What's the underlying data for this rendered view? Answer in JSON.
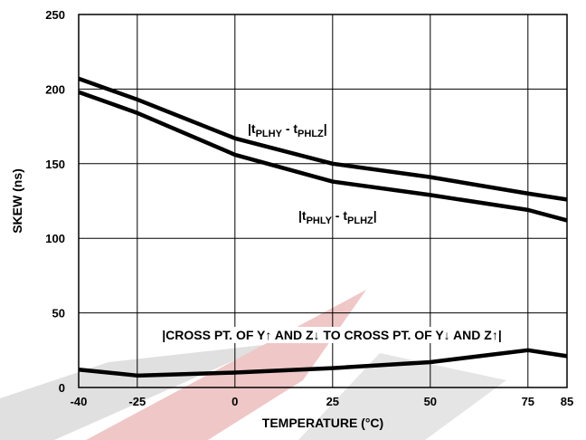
{
  "chart_data": {
    "type": "line",
    "x_label": "TEMPERATURE (°C)",
    "y_label": "SKEW (ns)",
    "x": [
      -40,
      -25,
      0,
      25,
      50,
      75,
      85
    ],
    "xlim": [
      -40,
      85
    ],
    "xticks": [
      -40,
      -25,
      0,
      25,
      50,
      75,
      85
    ],
    "ylim": [
      0,
      250
    ],
    "yticks": [
      0,
      50,
      100,
      150,
      200,
      250
    ],
    "grid": true,
    "series": [
      {
        "name": [
          "|t",
          "PLHY",
          " - t",
          "PHLZ",
          "|"
        ],
        "color": "#000000",
        "values": [
          207,
          193,
          167,
          150,
          141,
          130,
          126
        ]
      },
      {
        "name": [
          "|t",
          "PHLY",
          " - t",
          "PLHZ",
          "|"
        ],
        "color": "#000000",
        "values": [
          198,
          184,
          156,
          138,
          129,
          119,
          112
        ]
      },
      {
        "name": [
          "|CROSS PT. OF Y↑ AND Z↓ TO CROSS PT. OF Y↓ AND Z↑|"
        ],
        "color": "#000000",
        "values": [
          12,
          8,
          10,
          13,
          17,
          25,
          21
        ]
      }
    ]
  }
}
